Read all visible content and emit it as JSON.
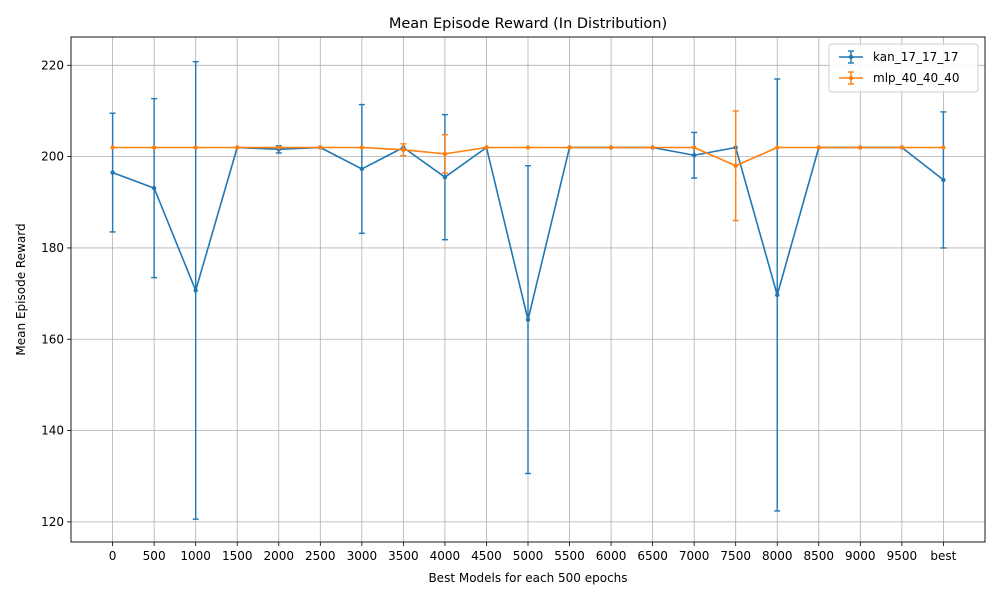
{
  "chart_data": {
    "type": "line",
    "title": "Mean Episode Reward (In Distribution)",
    "xlabel": "Best Models for each 500 epochs",
    "ylabel": "Mean Episode Reward",
    "categories": [
      "0",
      "500",
      "1000",
      "1500",
      "2000",
      "2500",
      "3000",
      "3500",
      "4000",
      "4500",
      "5000",
      "5500",
      "6000",
      "6500",
      "7000",
      "7500",
      "8000",
      "8500",
      "9000",
      "9500",
      "best"
    ],
    "ylim": [
      115.6,
      226.2
    ],
    "yticks": [
      120,
      140,
      160,
      180,
      200,
      220
    ],
    "grid": true,
    "legend_position": "top-right",
    "series": [
      {
        "name": "kan_17_17_17",
        "color": "#1f77b4",
        "values": [
          196.5,
          193.1,
          170.7,
          202.0,
          201.6,
          202.0,
          197.3,
          202.0,
          195.5,
          202.0,
          164.3,
          202.0,
          202.0,
          202.0,
          200.3,
          202.0,
          169.7,
          202.0,
          202.0,
          202.0,
          194.9
        ],
        "errors": [
          13.0,
          19.6,
          50.1,
          0.0,
          0.8,
          0.0,
          14.1,
          0.0,
          13.7,
          0.0,
          33.7,
          0.0,
          0.0,
          0.0,
          5.0,
          0.0,
          47.3,
          0.0,
          0.0,
          0.0,
          14.9
        ]
      },
      {
        "name": "mlp_40_40_40",
        "color": "#ff7f0e",
        "values": [
          202.0,
          202.0,
          202.0,
          202.0,
          202.0,
          202.0,
          202.0,
          201.5,
          200.6,
          202.0,
          202.0,
          202.0,
          202.0,
          202.0,
          202.0,
          198.0,
          202.0,
          202.0,
          202.0,
          202.0,
          202.0
        ],
        "errors": [
          0.0,
          0.0,
          0.0,
          0.0,
          0.0,
          0.0,
          0.0,
          1.3,
          4.2,
          0.0,
          0.0,
          0.0,
          0.0,
          0.0,
          0.0,
          12.0,
          0.0,
          0.0,
          0.0,
          0.0,
          0.0
        ]
      }
    ]
  }
}
